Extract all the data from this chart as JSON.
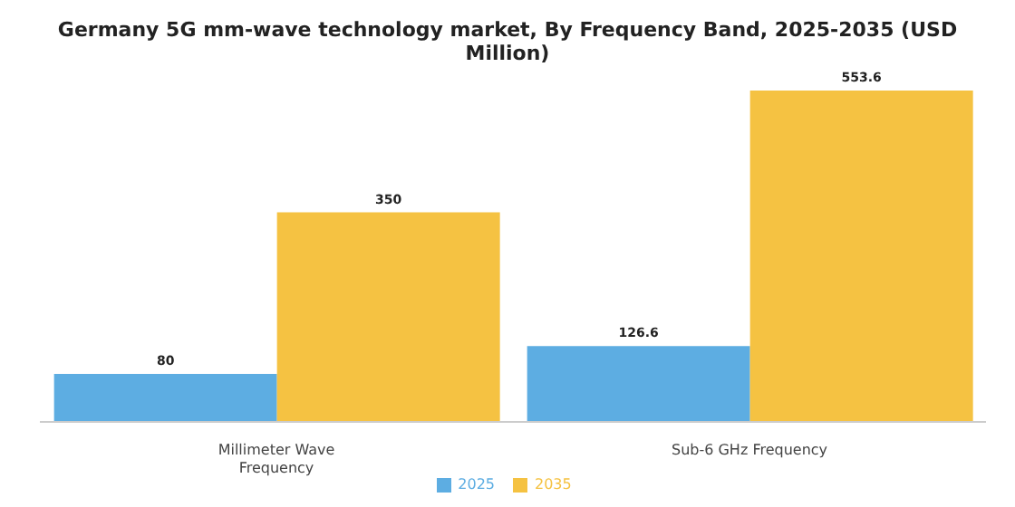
{
  "chart_data": {
    "type": "bar",
    "title": "Germany 5G mm-wave technology market, By Frequency Band, 2025-2035 (USD Million)",
    "categories": [
      "Millimeter Wave Frequency",
      "Sub-6 GHz Frequency"
    ],
    "series": [
      {
        "name": "2025",
        "color": "#5dade2",
        "values": [
          80,
          126.6
        ]
      },
      {
        "name": "2035",
        "color": "#f5c242",
        "values": [
          350,
          553.6
        ]
      }
    ],
    "data_labels": true,
    "legend": "bottom",
    "grid": false
  }
}
